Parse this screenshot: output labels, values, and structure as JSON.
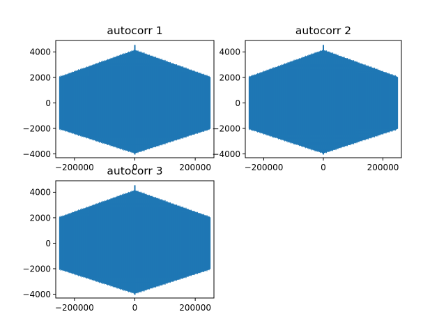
{
  "figure": {
    "background": "#ffffff",
    "series_color": "#1f77b4"
  },
  "chart_data": [
    {
      "type": "area",
      "title": "autocorr 1",
      "xlabel": "",
      "ylabel": "",
      "xlim": [
        -262000,
        262000
      ],
      "ylim": [
        -4300,
        4900
      ],
      "xticks": [
        -200000,
        0,
        200000
      ],
      "xtick_labels": [
        "−200000",
        "0",
        "200000"
      ],
      "yticks": [
        -4000,
        -2000,
        0,
        2000,
        4000
      ],
      "ytick_labels": [
        "−4000",
        "−2000",
        "0",
        "2000",
        "4000"
      ],
      "grid": false,
      "legend": "none",
      "series": [
        {
          "x": [
            -249000,
            0,
            249000
          ],
          "upper": [
            2000,
            4100,
            2000
          ],
          "lower": [
            -2000,
            -3900,
            -2000
          ],
          "peak": {
            "x": 0,
            "y": 4550
          }
        }
      ]
    },
    {
      "type": "area",
      "title": "autocorr 2",
      "xlabel": "",
      "ylabel": "",
      "xlim": [
        -262000,
        262000
      ],
      "ylim": [
        -4300,
        4900
      ],
      "xticks": [
        -200000,
        0,
        200000
      ],
      "xtick_labels": [
        "−200000",
        "0",
        "200000"
      ],
      "yticks": [
        -4000,
        -2000,
        0,
        2000,
        4000
      ],
      "ytick_labels": [
        "−4000",
        "−2000",
        "0",
        "2000",
        "4000"
      ],
      "grid": false,
      "legend": "none",
      "series": [
        {
          "x": [
            -249000,
            0,
            249000
          ],
          "upper": [
            2000,
            4100,
            2000
          ],
          "lower": [
            -2000,
            -3900,
            -2000
          ],
          "peak": {
            "x": 0,
            "y": 4550
          }
        }
      ]
    },
    {
      "type": "area",
      "title": "autocorr 3",
      "xlabel": "",
      "ylabel": "",
      "xlim": [
        -262000,
        262000
      ],
      "ylim": [
        -4300,
        4900
      ],
      "xticks": [
        -200000,
        0,
        200000
      ],
      "xtick_labels": [
        "−200000",
        "0",
        "200000"
      ],
      "yticks": [
        -4000,
        -2000,
        0,
        2000,
        4000
      ],
      "ytick_labels": [
        "−4000",
        "−2000",
        "0",
        "2000",
        "4000"
      ],
      "grid": false,
      "legend": "none",
      "series": [
        {
          "x": [
            -249000,
            0,
            249000
          ],
          "upper": [
            2000,
            4100,
            2000
          ],
          "lower": [
            -2000,
            -3900,
            -2000
          ],
          "peak": {
            "x": 0,
            "y": 4550
          }
        }
      ]
    }
  ]
}
